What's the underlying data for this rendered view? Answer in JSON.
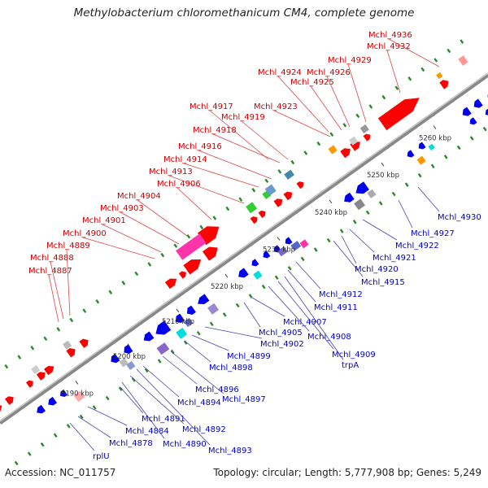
{
  "title": "Methylobacterium chloromethanicum CM4, complete genome",
  "footer": {
    "accession": "Accession: NC_011757",
    "summary": "Topology: circular; Length: 5,777,908 bp; Genes: 5,249"
  },
  "kbp_ticks": [
    "5190 kbp",
    "5200 kbp",
    "5210 kbp",
    "5220 kbp",
    "5230 kbp",
    "5240 kbp",
    "5250 kbp",
    "5260 kbp"
  ],
  "labels_top": [
    "Mchl_4887",
    "Mchl_4888",
    "Mchl_4889",
    "Mchl_4900",
    "Mchl_4901",
    "Mchl_4903",
    "Mchl_4904",
    "Mchl_4906",
    "Mchl_4913",
    "Mchl_4914",
    "Mchl_4916",
    "Mchl_4918",
    "Mchl_4917",
    "Mchl_4919",
    "Mchl_4923",
    "Mchl_4924",
    "Mchl_4925",
    "Mchl_4926",
    "Mchl_4929",
    "Mchl_4932",
    "Mchl_4936"
  ],
  "labels_bottom": [
    "rplU",
    "Mchl_4878",
    "Mchl_4884",
    "Mchl_4890",
    "Mchl_4891",
    "Mchl_4892",
    "Mchl_4893",
    "Mchl_4894",
    "Mchl_4896",
    "Mchl_4897",
    "Mchl_4898",
    "Mchl_4899",
    "Mchl_4902",
    "Mchl_4905",
    "Mchl_4907",
    "Mchl_4908",
    "Mchl_4909",
    "trpA",
    "Mchl_4911",
    "Mchl_4912",
    "Mchl_4915",
    "Mchl_4920",
    "Mchl_4921",
    "Mchl_4922",
    "Mchl_4927",
    "Mchl_4930"
  ],
  "colors": {
    "forward": "#ff0000",
    "reverse": "#0000ee",
    "backbone": "#8a8a8a",
    "tick": "#008800",
    "magenta": "#ff33aa",
    "orange": "#ff9900",
    "cyan": "#00dddd",
    "green": "#33cc33",
    "purple": "#8866cc",
    "gray": "#999999"
  }
}
